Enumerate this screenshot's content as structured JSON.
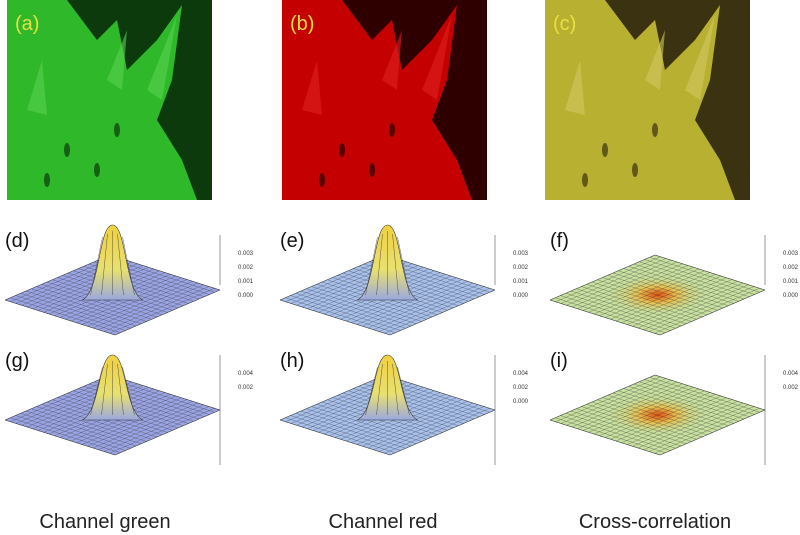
{
  "panels": [
    {
      "label": "(a)"
    },
    {
      "label": "(b)"
    },
    {
      "label": "(c)"
    },
    {
      "label": "(d)",
      "ticks": [
        "0.003",
        "0.002",
        "0.001",
        "0.000"
      ]
    },
    {
      "label": "(e)",
      "ticks": [
        "0.003",
        "0.002",
        "0.001",
        "0.000"
      ]
    },
    {
      "label": "(f)",
      "ticks": [
        "0.003",
        "0.002",
        "0.001",
        "0.000"
      ]
    },
    {
      "label": "(g)",
      "ticks": [
        "0.004",
        "0.002"
      ]
    },
    {
      "label": "(h)",
      "ticks": [
        "0.004",
        "0.002",
        "0.000"
      ]
    },
    {
      "label": "(i)",
      "ticks": [
        "0.004",
        "0.002"
      ]
    }
  ],
  "captions": [
    "Channel green",
    "Channel red",
    "Cross-correlation"
  ]
}
